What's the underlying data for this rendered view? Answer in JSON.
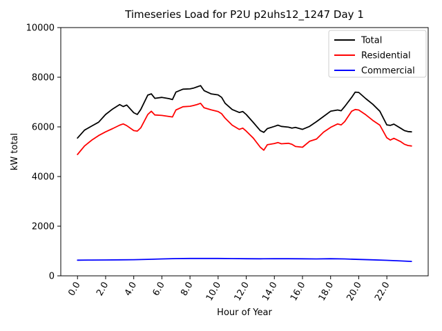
{
  "window": {
    "background_color": "#ffffff"
  },
  "chart_data": {
    "type": "line",
    "title": "Timeseries Load for P2U p2uhs12_1247  Day 1",
    "xlabel": "Hour of Year",
    "ylabel": "kW total",
    "xlim": [
      -1.19,
      24.94
    ],
    "ylim": [
      0,
      10000
    ],
    "grid": false,
    "x_ticks": {
      "values": [
        0,
        2,
        4,
        6,
        8,
        10,
        12,
        14,
        16,
        18,
        20,
        22
      ],
      "labels": [
        "0.0",
        "2.0",
        "4.0",
        "6.0",
        "8.0",
        "10.0",
        "12.0",
        "14.0",
        "16.0",
        "18.0",
        "20.0",
        "22.0"
      ],
      "rotation_deg": 60
    },
    "y_ticks": {
      "values": [
        0,
        2000,
        4000,
        6000,
        8000,
        10000
      ],
      "labels": [
        "0",
        "2000",
        "4000",
        "6000",
        "8000",
        "10000"
      ]
    },
    "legend": {
      "position": "upper right",
      "entries": [
        {
          "label": "Total",
          "color": "#000000"
        },
        {
          "label": "Residential",
          "color": "#ff0000"
        },
        {
          "label": "Commercial",
          "color": "#0000ff"
        }
      ]
    },
    "series": [
      {
        "name": "Total",
        "color": "#000000",
        "x": [
          0,
          0.5,
          1,
          1.5,
          2,
          2.5,
          3,
          3.25,
          3.5,
          4,
          4.25,
          4.5,
          5,
          5.25,
          5.5,
          6,
          6.5,
          6.75,
          7,
          7.5,
          8,
          8.25,
          8.5,
          8.75,
          9,
          9.5,
          10,
          10.25,
          10.5,
          11,
          11.5,
          11.75,
          12,
          12.5,
          13,
          13.25,
          13.5,
          14,
          14.25,
          14.5,
          15,
          15.25,
          15.5,
          16,
          16.5,
          17,
          17.5,
          18,
          18.5,
          18.75,
          19,
          19.5,
          19.75,
          20,
          20.5,
          21,
          21.5,
          22,
          22.25,
          22.5,
          23,
          23.25,
          23.5,
          23.75
        ],
        "y": [
          5550,
          5870,
          6030,
          6190,
          6500,
          6720,
          6900,
          6820,
          6880,
          6570,
          6500,
          6700,
          7280,
          7330,
          7150,
          7190,
          7140,
          7100,
          7400,
          7520,
          7530,
          7560,
          7610,
          7660,
          7460,
          7330,
          7290,
          7190,
          6950,
          6700,
          6580,
          6620,
          6500,
          6180,
          5850,
          5780,
          5930,
          6020,
          6070,
          6020,
          5990,
          5950,
          5980,
          5900,
          6020,
          6210,
          6420,
          6630,
          6680,
          6650,
          6820,
          7190,
          7400,
          7390,
          7140,
          6910,
          6630,
          6080,
          6060,
          6110,
          5940,
          5850,
          5810,
          5800
        ]
      },
      {
        "name": "Residential",
        "color": "#ff0000",
        "x": [
          0,
          0.5,
          1,
          1.5,
          2,
          2.5,
          3,
          3.25,
          3.5,
          4,
          4.25,
          4.5,
          5,
          5.25,
          5.5,
          6,
          6.5,
          6.75,
          7,
          7.5,
          8,
          8.25,
          8.5,
          8.75,
          9,
          9.5,
          10,
          10.25,
          10.5,
          11,
          11.5,
          11.75,
          12,
          12.5,
          13,
          13.25,
          13.5,
          14,
          14.25,
          14.5,
          15,
          15.25,
          15.5,
          16,
          16.5,
          17,
          17.5,
          18,
          18.5,
          18.75,
          19,
          19.5,
          19.75,
          20,
          20.5,
          21,
          21.5,
          22,
          22.25,
          22.5,
          23,
          23.25,
          23.5,
          23.75
        ],
        "y": [
          4890,
          5230,
          5460,
          5650,
          5800,
          5930,
          6070,
          6120,
          6050,
          5850,
          5830,
          5960,
          6500,
          6630,
          6480,
          6460,
          6420,
          6400,
          6680,
          6810,
          6830,
          6860,
          6900,
          6950,
          6770,
          6690,
          6620,
          6530,
          6350,
          6070,
          5900,
          5950,
          5830,
          5550,
          5180,
          5060,
          5280,
          5330,
          5370,
          5320,
          5340,
          5300,
          5210,
          5180,
          5420,
          5510,
          5790,
          5980,
          6120,
          6080,
          6210,
          6630,
          6700,
          6680,
          6490,
          6260,
          6070,
          5560,
          5470,
          5540,
          5400,
          5300,
          5250,
          5230
        ]
      },
      {
        "name": "Commercial",
        "color": "#0000ff",
        "x": [
          0,
          1,
          2,
          3,
          4,
          5,
          6,
          7,
          8,
          9,
          10,
          11,
          12,
          13,
          14,
          15,
          16,
          17,
          18,
          19,
          20,
          21,
          22,
          23,
          23.75
        ],
        "y": [
          630,
          635,
          640,
          645,
          650,
          665,
          680,
          695,
          700,
          700,
          700,
          695,
          690,
          685,
          690,
          690,
          685,
          680,
          690,
          680,
          660,
          645,
          625,
          600,
          580
        ]
      }
    ]
  }
}
